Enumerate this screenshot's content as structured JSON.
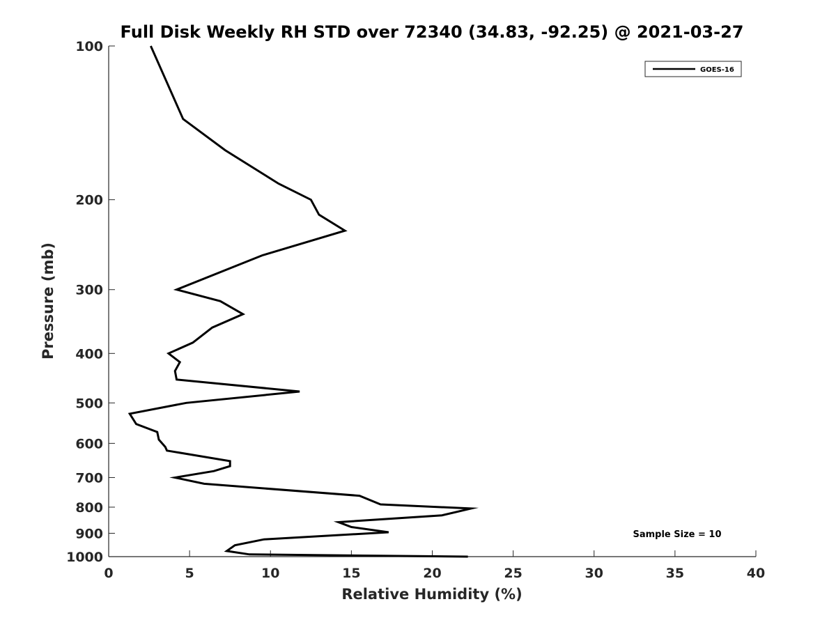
{
  "chart_data": {
    "type": "line",
    "title": "Full Disk Weekly RH STD over 72340 (34.83, -92.25) @ 2021-03-27",
    "xlabel": "Relative Humidity (%)",
    "ylabel": "Pressure (mb)",
    "xlim": [
      0,
      40
    ],
    "ylim": [
      100,
      1000
    ],
    "y_scale": "log",
    "y_reversed": true,
    "xticks": [
      0,
      5,
      10,
      15,
      20,
      25,
      30,
      35,
      40
    ],
    "xtick_labels": [
      "0",
      "5",
      "10",
      "15",
      "20",
      "25",
      "30",
      "35",
      "40"
    ],
    "yticks": [
      100,
      200,
      300,
      400,
      500,
      600,
      700,
      800,
      900,
      1000
    ],
    "ytick_labels": [
      "100",
      "200",
      "300",
      "400",
      "500",
      "600",
      "700",
      "800",
      "900",
      "1000"
    ],
    "grid": false,
    "legend_position": "top-right",
    "series": [
      {
        "name": "GOES-16",
        "color": "#000000",
        "x": [
          2.6,
          3.5,
          4.6,
          7.2,
          10.5,
          12.5,
          13.0,
          14.6,
          9.5,
          4.2,
          6.9,
          8.3,
          6.4,
          5.2,
          3.7,
          4.4,
          4.1,
          4.2,
          11.8,
          4.8,
          1.3,
          1.7,
          3.0,
          3.1,
          3.5,
          3.6,
          7.5,
          7.5,
          6.5,
          4.1,
          5.9,
          15.5,
          16.8,
          22.4,
          20.6,
          14.2,
          15.0,
          17.3,
          9.6,
          7.8,
          7.3,
          8.7,
          22.2
        ],
        "y": [
          100,
          116,
          139,
          160,
          186,
          200,
          214,
          230,
          257,
          300,
          316,
          335,
          356,
          381,
          400,
          416,
          433,
          450,
          475,
          500,
          525,
          550,
          570,
          590,
          610,
          620,
          650,
          665,
          680,
          700,
          720,
          760,
          790,
          805,
          830,
          856,
          875,
          896,
          925,
          950,
          975,
          990,
          1000
        ]
      }
    ],
    "annotations": [
      "Sample Size = 10"
    ]
  }
}
